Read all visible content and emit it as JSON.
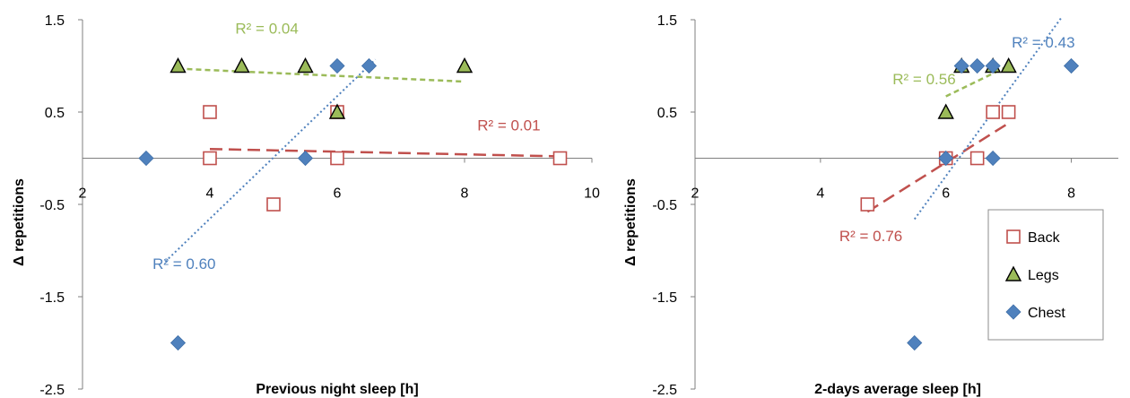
{
  "colors": {
    "back": "#C0504D",
    "legs_fill": "#9BBB59",
    "legs_stroke": "#000000",
    "chest": "#4F81BD",
    "legs_trend": "#9BBB59",
    "back_trend": "#C0504D",
    "chest_trend": "#4F81BD",
    "axis": "#7F7F7F"
  },
  "legend": [
    {
      "name": "Back",
      "marker": "square"
    },
    {
      "name": "Legs",
      "marker": "triangle"
    },
    {
      "name": "Chest",
      "marker": "diamond"
    }
  ],
  "chart_data": [
    {
      "type": "scatter",
      "xlabel": "Previous night sleep [h]",
      "ylabel": "Δ repetitions",
      "xlim": [
        2,
        10
      ],
      "ylim": [
        -2.5,
        1.5
      ],
      "xticks": [
        "2",
        "4",
        "6",
        "8",
        "10"
      ],
      "yticks": [
        "1.5",
        "0.5",
        "-0.5",
        "-1.5",
        "-2.5"
      ],
      "xtick_values": [
        2,
        4,
        6,
        8,
        10
      ],
      "ytick_values": [
        1.5,
        0.5,
        -0.5,
        -1.5,
        -2.5
      ],
      "grid": false,
      "series": [
        {
          "name": "Back",
          "key": "back",
          "points": [
            [
              4,
              0.5
            ],
            [
              4,
              0
            ],
            [
              5,
              -0.5
            ],
            [
              6,
              0
            ],
            [
              6,
              0.5
            ],
            [
              9.5,
              0
            ]
          ]
        },
        {
          "name": "Legs",
          "key": "legs",
          "points": [
            [
              3.5,
              1
            ],
            [
              4.5,
              1
            ],
            [
              5.5,
              1
            ],
            [
              6,
              0.5
            ],
            [
              8,
              1
            ]
          ]
        },
        {
          "name": "Chest",
          "key": "chest",
          "points": [
            [
              3,
              0
            ],
            [
              3.5,
              -2
            ],
            [
              5.5,
              0
            ],
            [
              6,
              1
            ],
            [
              6.5,
              1
            ]
          ]
        }
      ],
      "trendlines": [
        {
          "key": "legs",
          "x": [
            3.5,
            8
          ],
          "y": [
            0.97,
            0.83
          ],
          "r2": "R² = 0.04",
          "label_at": [
            4.4,
            1.35
          ]
        },
        {
          "key": "back",
          "x": [
            4,
            9.5
          ],
          "y": [
            0.1,
            0.02
          ],
          "r2": "R² = 0.01",
          "label_at": [
            8.2,
            0.3
          ]
        },
        {
          "key": "chest",
          "x": [
            3.3,
            6.6
          ],
          "y": [
            -1.12,
            1.07
          ],
          "r2": "R² = 0.60",
          "label_at": [
            3.1,
            -1.2
          ]
        }
      ]
    },
    {
      "type": "scatter",
      "xlabel": "2-days average sleep [h]",
      "ylabel": "Δ repetitions",
      "xlim": [
        2,
        8.75
      ],
      "ylim": [
        -2.5,
        1.5
      ],
      "xticks": [
        "2",
        "4",
        "6",
        "8"
      ],
      "yticks": [
        "1.5",
        "0.5",
        "-0.5",
        "-1.5",
        "-2.5"
      ],
      "xtick_values": [
        2,
        4,
        6,
        8
      ],
      "ytick_values": [
        1.5,
        0.5,
        -0.5,
        -1.5,
        -2.5
      ],
      "grid": false,
      "series": [
        {
          "name": "Back",
          "key": "back",
          "points": [
            [
              4.75,
              -0.5
            ],
            [
              6,
              0
            ],
            [
              6.5,
              0
            ],
            [
              6.75,
              0.5
            ],
            [
              7,
              0.5
            ]
          ]
        },
        {
          "name": "Legs",
          "key": "legs",
          "points": [
            [
              6,
              0.5
            ],
            [
              6.25,
              1
            ],
            [
              6.75,
              1
            ],
            [
              7,
              1
            ]
          ]
        },
        {
          "name": "Chest",
          "key": "chest",
          "points": [
            [
              5.5,
              -2
            ],
            [
              6,
              0
            ],
            [
              6.25,
              1
            ],
            [
              6.5,
              1
            ],
            [
              6.75,
              1
            ],
            [
              6.75,
              0
            ],
            [
              8,
              1
            ]
          ]
        }
      ],
      "trendlines": [
        {
          "key": "legs",
          "x": [
            6,
            7
          ],
          "y": [
            0.67,
            1.0
          ],
          "r2": "R² = 0.56",
          "label_at": [
            5.15,
            0.8
          ]
        },
        {
          "key": "back",
          "x": [
            4.75,
            7
          ],
          "y": [
            -0.58,
            0.38
          ],
          "r2": "R² = 0.76",
          "label_at": [
            4.3,
            -0.9
          ]
        },
        {
          "key": "chest",
          "x": [
            5.5,
            7.85
          ],
          "y": [
            -0.66,
            1.53
          ],
          "r2": "R² = 0.43",
          "label_at": [
            7.05,
            1.2
          ]
        }
      ]
    }
  ]
}
